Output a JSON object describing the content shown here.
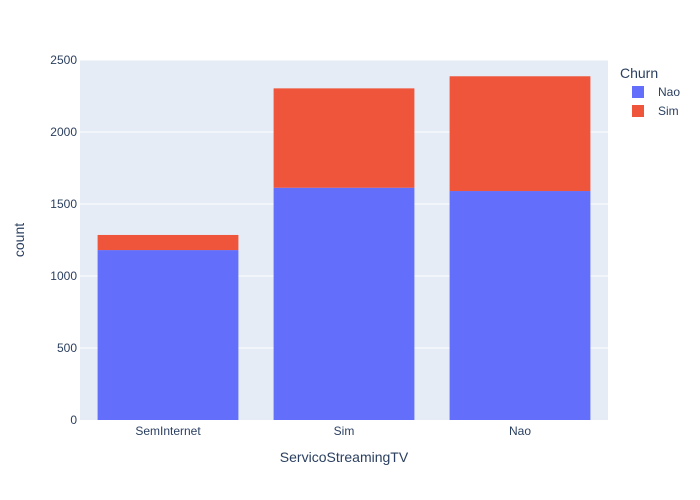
{
  "chart_data": {
    "type": "bar",
    "stacked": true,
    "categories": [
      "SemInternet",
      "Sim",
      "Nao"
    ],
    "series": [
      {
        "name": "Nao",
        "values": [
          1180,
          1613,
          1590
        ],
        "color": "#636efa"
      },
      {
        "name": "Sim",
        "values": [
          105,
          690,
          797
        ],
        "color": "#ef553b"
      }
    ],
    "xlabel": "ServicoStreamingTV",
    "ylabel": "count",
    "ylim": [
      0,
      2500
    ],
    "yticks": [
      0,
      500,
      1000,
      1500,
      2000,
      2500
    ],
    "legend_title": "Churn",
    "legend_position": "top-right",
    "grid": true,
    "plot_background": "#e5ecf6"
  }
}
